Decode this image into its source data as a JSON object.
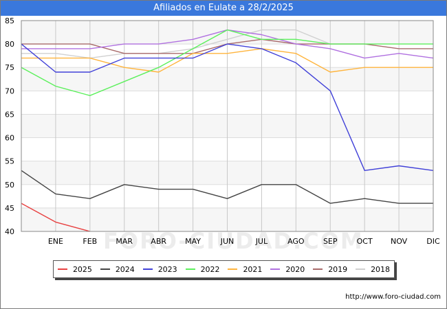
{
  "title": "Afiliados en Eulate a 28/2/2025",
  "footer_url": "http://www.foro-ciudad.com",
  "watermark": "FORO-CIUDAD.COM",
  "chart_data": {
    "type": "line",
    "title": "Afiliados en Eulate a 28/2/2025",
    "categories": [
      "",
      "ENE",
      "FEB",
      "MAR",
      "ABR",
      "MAY",
      "JUN",
      "JUL",
      "AGO",
      "SEP",
      "OCT",
      "NOV",
      "DIC"
    ],
    "y_ticks": [
      40,
      45,
      50,
      55,
      60,
      65,
      70,
      75,
      80,
      85
    ],
    "ylim": [
      40,
      85
    ],
    "grid": true,
    "legend_position": "bottom",
    "series": [
      {
        "name": "2018",
        "color": "#d0d0d0",
        "values": [
          78,
          78,
          77,
          78,
          78,
          79,
          81,
          83,
          83,
          80,
          null,
          null,
          null
        ]
      },
      {
        "name": "2019",
        "color": "#a86a6a",
        "values": [
          80,
          80,
          80,
          78,
          78,
          78,
          80,
          81,
          80,
          80,
          80,
          79,
          79
        ]
      },
      {
        "name": "2020",
        "color": "#b070e0",
        "values": [
          79,
          79,
          79,
          80,
          80,
          81,
          83,
          82,
          80,
          79,
          77,
          78,
          77
        ]
      },
      {
        "name": "2021",
        "color": "#ffb43c",
        "values": [
          77,
          77,
          77,
          75,
          74,
          78,
          78,
          79,
          78,
          74,
          75,
          75,
          75
        ]
      },
      {
        "name": "2022",
        "color": "#5cf05c",
        "values": [
          75,
          71,
          69,
          72,
          75,
          79,
          83,
          81,
          81,
          80,
          80,
          80,
          80
        ]
      },
      {
        "name": "2023",
        "color": "#4040d8",
        "values": [
          80,
          74,
          74,
          77,
          77,
          77,
          80,
          79,
          76,
          70,
          53,
          54,
          53
        ]
      },
      {
        "name": "2024",
        "color": "#444444",
        "values": [
          53,
          48,
          47,
          50,
          49,
          49,
          47,
          50,
          50,
          46,
          47,
          46,
          46
        ]
      },
      {
        "name": "2025",
        "color": "#e84040",
        "values": [
          46,
          42,
          40,
          null,
          null,
          null,
          null,
          null,
          null,
          null,
          null,
          null,
          null
        ]
      }
    ],
    "legend": [
      {
        "name": "2025",
        "color": "#e84040"
      },
      {
        "name": "2024",
        "color": "#444444"
      },
      {
        "name": "2023",
        "color": "#4040d8"
      },
      {
        "name": "2022",
        "color": "#5cf05c"
      },
      {
        "name": "2021",
        "color": "#ffb43c"
      },
      {
        "name": "2020",
        "color": "#b070e0"
      },
      {
        "name": "2019",
        "color": "#a86a6a"
      },
      {
        "name": "2018",
        "color": "#d0d0d0"
      }
    ]
  }
}
